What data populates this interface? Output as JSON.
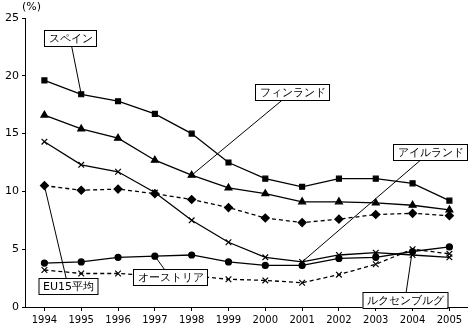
{
  "chart_data": {
    "type": "line",
    "y_label": "(%)",
    "categories": [
      "1994",
      "1995",
      "1996",
      "1997",
      "1998",
      "1999",
      "2000",
      "2001",
      "2002",
      "2003",
      "2004",
      "2005"
    ],
    "series": [
      {
        "name": "スペイン",
        "color": "#000000",
        "marker": "square",
        "line_style": "solid",
        "values": [
          19.6,
          18.4,
          17.8,
          16.7,
          15.0,
          12.5,
          11.1,
          10.4,
          11.1,
          11.1,
          10.7,
          9.2
        ]
      },
      {
        "name": "フィンランド",
        "color": "#000000",
        "marker": "triangle",
        "line_style": "solid",
        "values": [
          16.6,
          15.4,
          14.6,
          12.7,
          11.4,
          10.3,
          9.8,
          9.1,
          9.1,
          9.0,
          8.8,
          8.4
        ]
      },
      {
        "name": "アイルランド",
        "color": "#000000",
        "marker": "cross",
        "line_style": "solid",
        "values": [
          14.3,
          12.3,
          11.7,
          9.9,
          7.5,
          5.6,
          4.3,
          3.9,
          4.5,
          4.7,
          4.5,
          4.3
        ]
      },
      {
        "name": "EU15平均",
        "color": "#000000",
        "marker": "diamond",
        "line_style": "dashed",
        "values": [
          10.5,
          10.1,
          10.2,
          9.8,
          9.3,
          8.6,
          7.7,
          7.3,
          7.6,
          8.0,
          8.1,
          7.9
        ]
      },
      {
        "name": "オーストリア",
        "color": "#000000",
        "marker": "circle",
        "line_style": "solid",
        "values": [
          3.8,
          3.9,
          4.3,
          4.4,
          4.5,
          3.9,
          3.6,
          3.6,
          4.2,
          4.3,
          4.8,
          5.2
        ]
      },
      {
        "name": "ルクセンブルグ",
        "color": "#000000",
        "marker": "cross",
        "line_style": "dashed",
        "values": [
          3.2,
          2.9,
          2.9,
          2.7,
          2.7,
          2.4,
          2.3,
          2.1,
          2.8,
          3.7,
          5.0,
          4.6
        ]
      }
    ],
    "ylim": [
      0,
      25
    ],
    "yticks": [
      0,
      5,
      10,
      15,
      20,
      25
    ],
    "grid": false,
    "legend": "none"
  }
}
